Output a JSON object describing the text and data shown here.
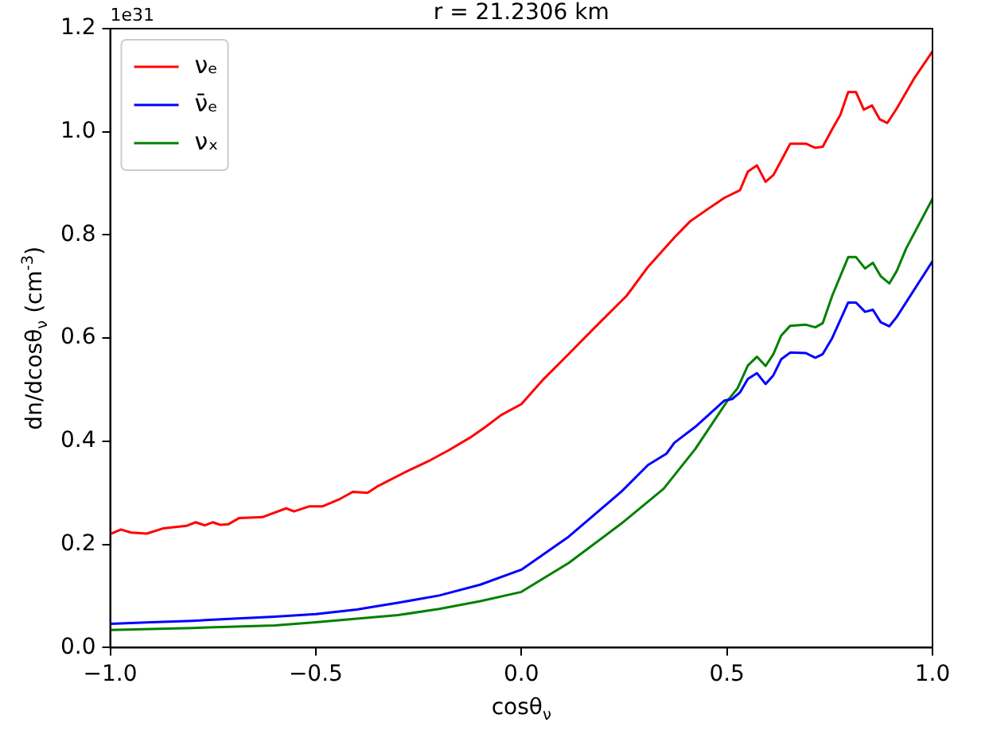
{
  "chart_data": {
    "type": "line",
    "title": "r = 21.2306 km",
    "xlabel": "cosθ$_{ν}$",
    "ylabel": "dn/dcosθ$_{ν}$ (cm$^{-3}$)",
    "annotations": [
      "1e31"
    ],
    "xlim": [
      -1,
      1
    ],
    "xticks": [
      {
        "value": -1,
        "label": "−1.0"
      },
      {
        "value": -0.5,
        "label": "−0.5"
      },
      {
        "value": 0,
        "label": "0.0"
      },
      {
        "value": 0.5,
        "label": "0.5"
      },
      {
        "value": 1,
        "label": "1.0"
      }
    ],
    "ylim": [
      0,
      1.2
    ],
    "yticks": [
      {
        "value": 0,
        "label": "0.0"
      },
      {
        "value": 0.2,
        "label": "0.2"
      },
      {
        "value": 0.4,
        "label": "0.4"
      },
      {
        "value": 0.6,
        "label": "0.6"
      },
      {
        "value": 0.8,
        "label": "0.8"
      },
      {
        "value": 1,
        "label": "1.0"
      },
      {
        "value": 1.2,
        "label": "1.2"
      }
    ],
    "grid": false,
    "legend": "top left",
    "marker": "none",
    "line_style": "solid",
    "series": [
      {
        "name": "νₑ",
        "color": "#ff0000",
        "x": [
          -1,
          -0.974,
          -0.949,
          -0.911,
          -0.872,
          -0.815,
          -0.792,
          -0.77,
          -0.751,
          -0.732,
          -0.713,
          -0.687,
          -0.63,
          -0.572,
          -0.553,
          -0.515,
          -0.483,
          -0.444,
          -0.41,
          -0.374,
          -0.349,
          -0.278,
          -0.227,
          -0.176,
          -0.125,
          -0.087,
          -0.049,
          0,
          0.051,
          0.115,
          0.179,
          0.256,
          0.308,
          0.372,
          0.41,
          0.455,
          0.494,
          0.532,
          0.551,
          0.573,
          0.594,
          0.613,
          0.632,
          0.654,
          0.692,
          0.715,
          0.733,
          0.756,
          0.776,
          0.795,
          0.814,
          0.833,
          0.853,
          0.872,
          0.89,
          0.913,
          0.955,
          1
        ],
        "values": [
          0.22,
          0.229,
          0.223,
          0.221,
          0.231,
          0.236,
          0.243,
          0.237,
          0.243,
          0.238,
          0.239,
          0.251,
          0.253,
          0.27,
          0.264,
          0.274,
          0.274,
          0.287,
          0.302,
          0.3,
          0.313,
          0.342,
          0.361,
          0.383,
          0.407,
          0.428,
          0.451,
          0.472,
          0.518,
          0.569,
          0.621,
          0.682,
          0.738,
          0.795,
          0.826,
          0.851,
          0.872,
          0.887,
          0.923,
          0.935,
          0.903,
          0.916,
          0.944,
          0.977,
          0.977,
          0.969,
          0.971,
          1.005,
          1.033,
          1.077,
          1.077,
          1.043,
          1.051,
          1.024,
          1.017,
          1.045,
          1.103,
          1.156
        ]
      },
      {
        "name": "ν̄ₑ",
        "color": "#0000ff",
        "x": [
          -1,
          -0.9,
          -0.8,
          -0.7,
          -0.6,
          -0.5,
          -0.4,
          -0.3,
          -0.2,
          -0.1,
          0,
          0.115,
          0.244,
          0.308,
          0.353,
          0.372,
          0.423,
          0.494,
          0.513,
          0.532,
          0.551,
          0.573,
          0.594,
          0.613,
          0.632,
          0.654,
          0.692,
          0.715,
          0.733,
          0.756,
          0.795,
          0.814,
          0.836,
          0.855,
          0.874,
          0.895,
          0.913,
          1
        ],
        "values": [
          0.046,
          0.049,
          0.052,
          0.056,
          0.06,
          0.065,
          0.074,
          0.087,
          0.101,
          0.122,
          0.151,
          0.215,
          0.303,
          0.354,
          0.376,
          0.397,
          0.428,
          0.479,
          0.482,
          0.495,
          0.521,
          0.532,
          0.511,
          0.528,
          0.559,
          0.572,
          0.571,
          0.562,
          0.569,
          0.6,
          0.669,
          0.669,
          0.651,
          0.655,
          0.631,
          0.623,
          0.641,
          0.749
        ]
      },
      {
        "name": "νₓ",
        "color": "#008000",
        "x": [
          -1,
          -0.8,
          -0.6,
          -0.5,
          -0.4,
          -0.3,
          -0.2,
          -0.1,
          0,
          0.115,
          0.244,
          0.346,
          0.423,
          0.5,
          0.526,
          0.551,
          0.573,
          0.594,
          0.613,
          0.632,
          0.654,
          0.692,
          0.715,
          0.733,
          0.756,
          0.795,
          0.814,
          0.836,
          0.855,
          0.874,
          0.895,
          0.913,
          0.936,
          1
        ],
        "values": [
          0.034,
          0.038,
          0.043,
          0.049,
          0.056,
          0.063,
          0.075,
          0.09,
          0.108,
          0.164,
          0.241,
          0.308,
          0.385,
          0.477,
          0.503,
          0.547,
          0.564,
          0.546,
          0.569,
          0.605,
          0.624,
          0.626,
          0.621,
          0.629,
          0.682,
          0.757,
          0.757,
          0.735,
          0.746,
          0.72,
          0.706,
          0.73,
          0.774,
          0.87
        ]
      }
    ]
  }
}
